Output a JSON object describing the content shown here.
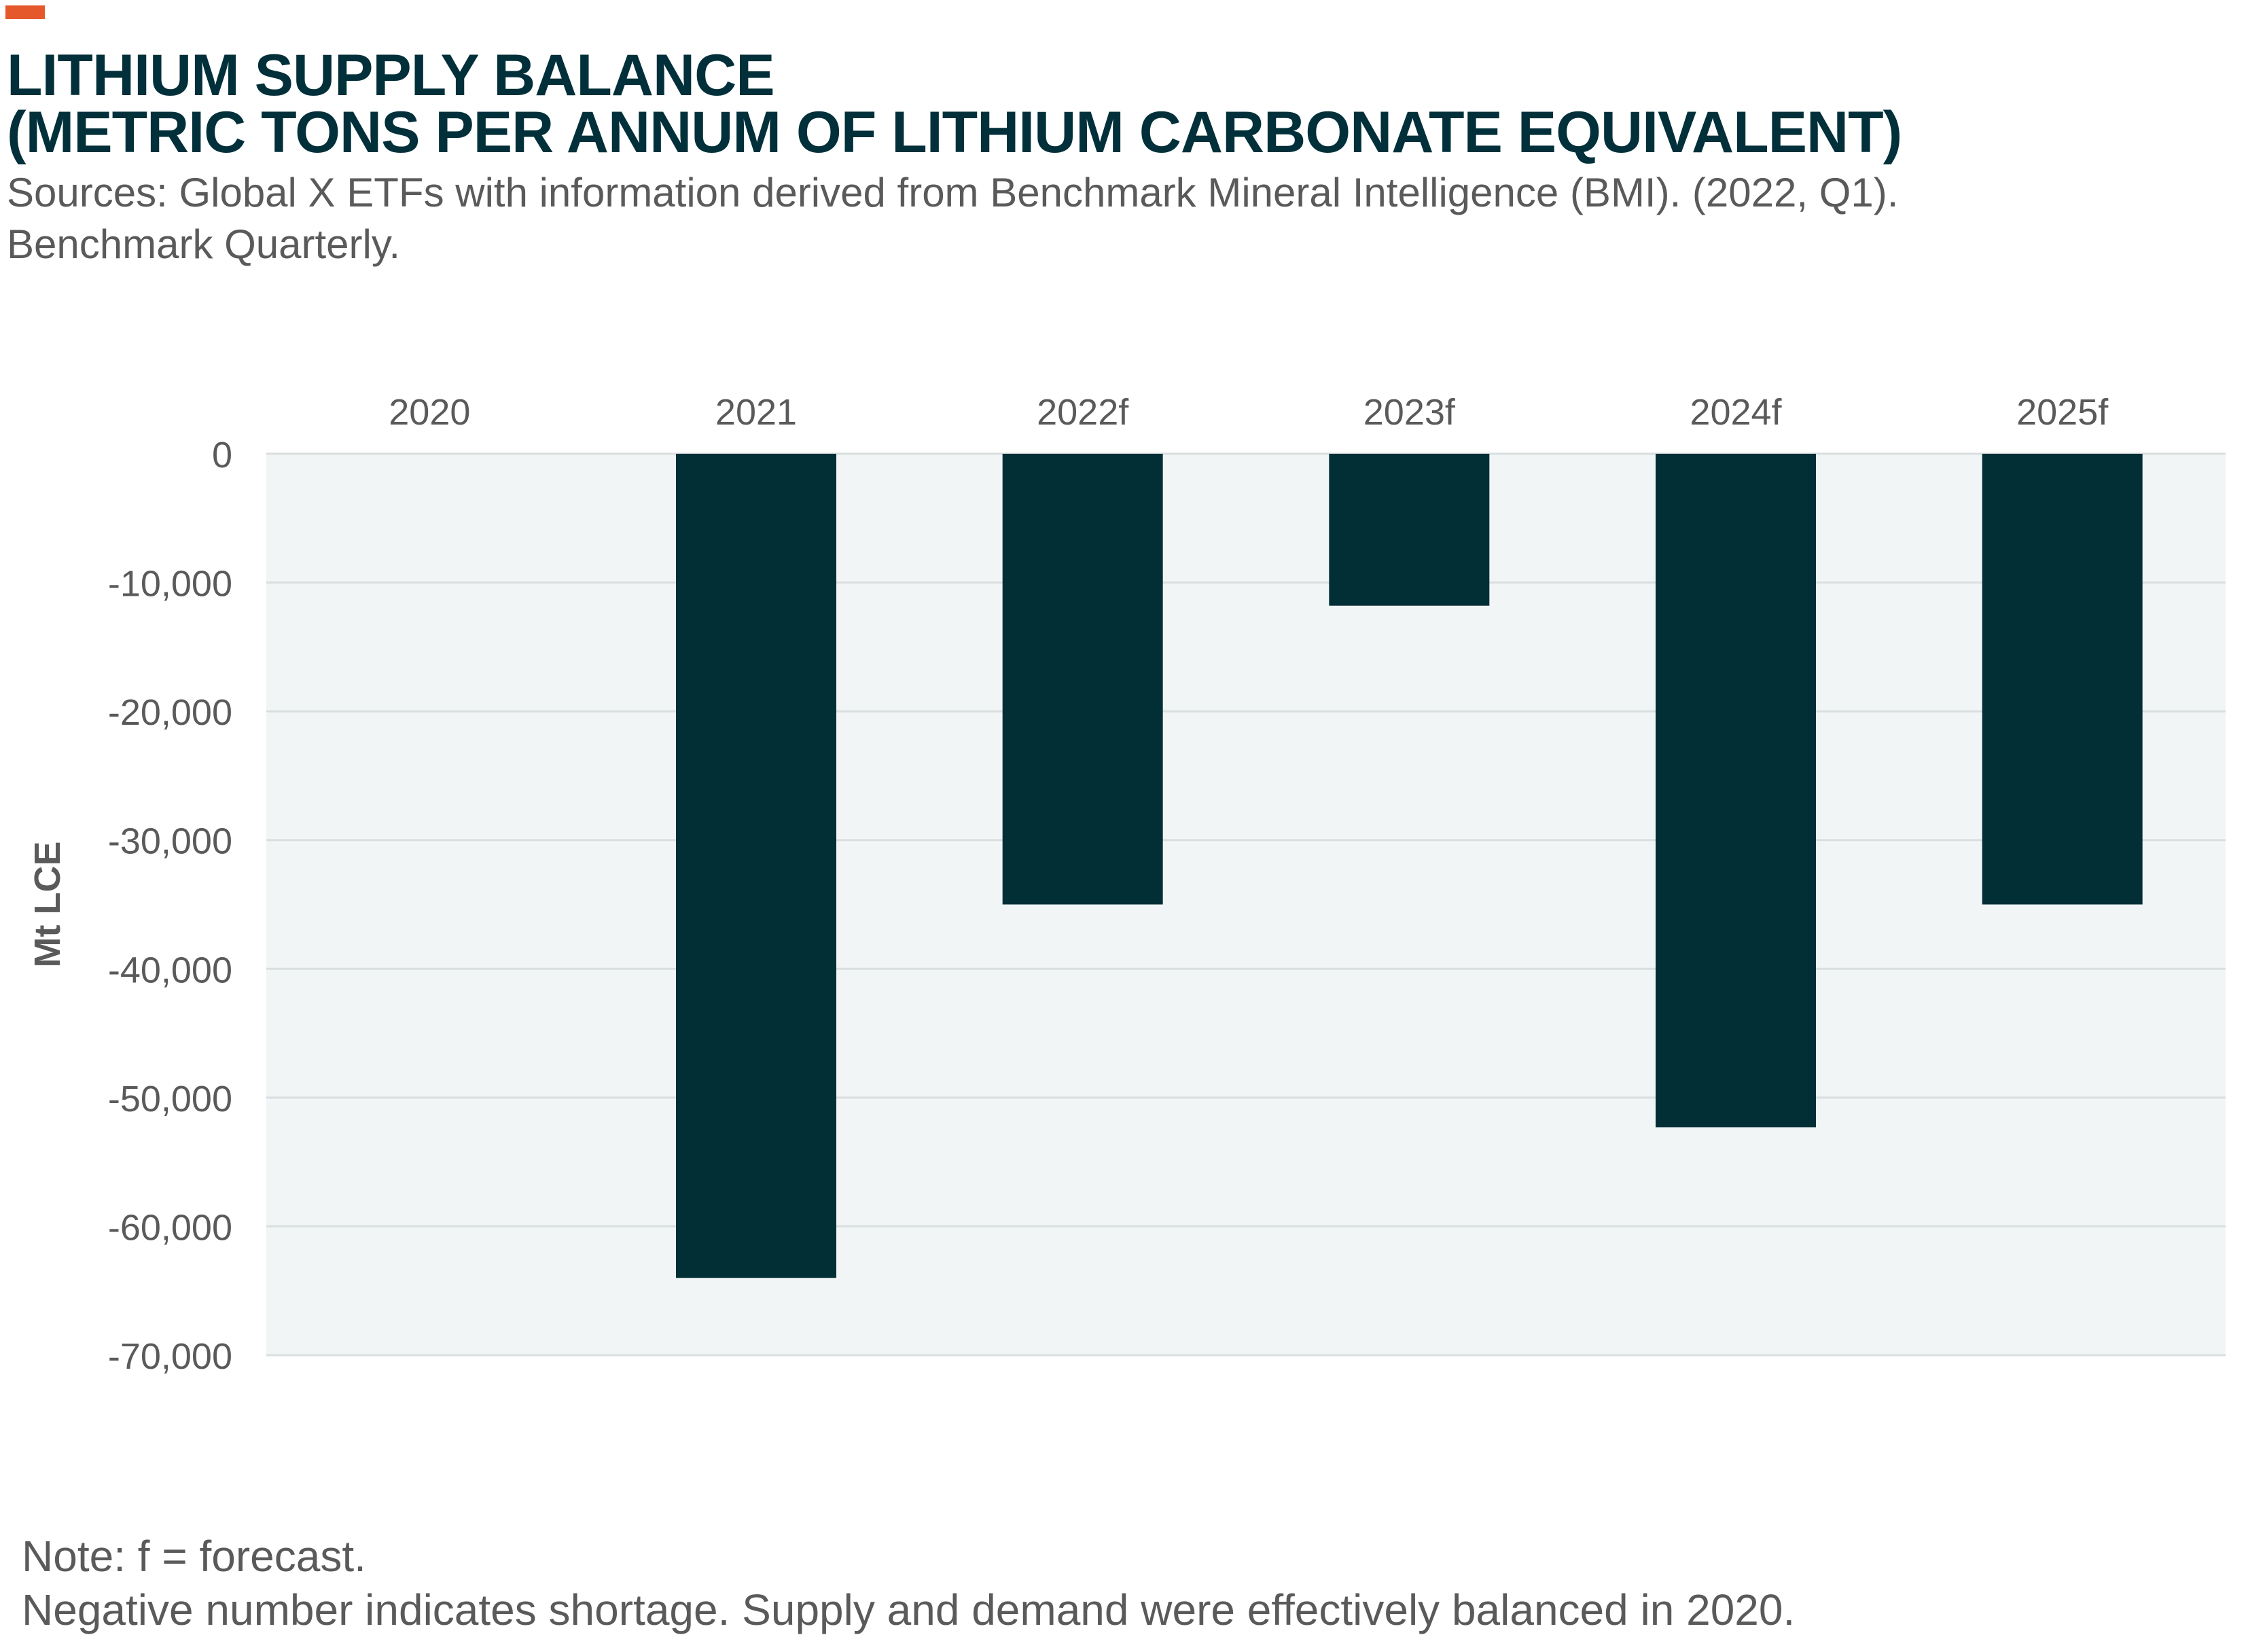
{
  "accent_color": "#e5582b",
  "header": {
    "title_line1": "LITHIUM SUPPLY BALANCE",
    "title_line2": "(METRIC TONS PER ANNUM OF LITHIUM CARBONATE EQUIVALENT)",
    "source_line1": "Sources: Global X ETFs with information derived from Benchmark Mineral Intelligence (BMI). (2022, Q1).",
    "source_line2": "Benchmark Quarterly."
  },
  "notes": {
    "line1": "Note: f = forecast.",
    "line2": "Negative number indicates shortage. Supply and demand were effectively balanced in 2020."
  },
  "chart_data": {
    "type": "bar",
    "title": "LITHIUM SUPPLY BALANCE (METRIC TONS PER ANNUM OF LITHIUM CARBONATE EQUIVALENT)",
    "xlabel": "",
    "ylabel": "Mt LCE",
    "categories": [
      "2020",
      "2021",
      "2022f",
      "2023f",
      "2024f",
      "2025f"
    ],
    "values": [
      0,
      -64000,
      -35000,
      -11800,
      -52300,
      -35000
    ],
    "ylim": [
      -70000,
      0
    ],
    "yticks": [
      0,
      -10000,
      -20000,
      -30000,
      -40000,
      -50000,
      -60000,
      -70000
    ],
    "ytick_labels": [
      "0",
      "-10,000",
      "-20,000",
      "-30,000",
      "-40,000",
      "-50,000",
      "-60,000",
      "-70,000"
    ],
    "x_axis_position": "top",
    "grid": true,
    "bar_color": "#022e36",
    "plot_background": "#f2f5f6",
    "legend": "none"
  }
}
